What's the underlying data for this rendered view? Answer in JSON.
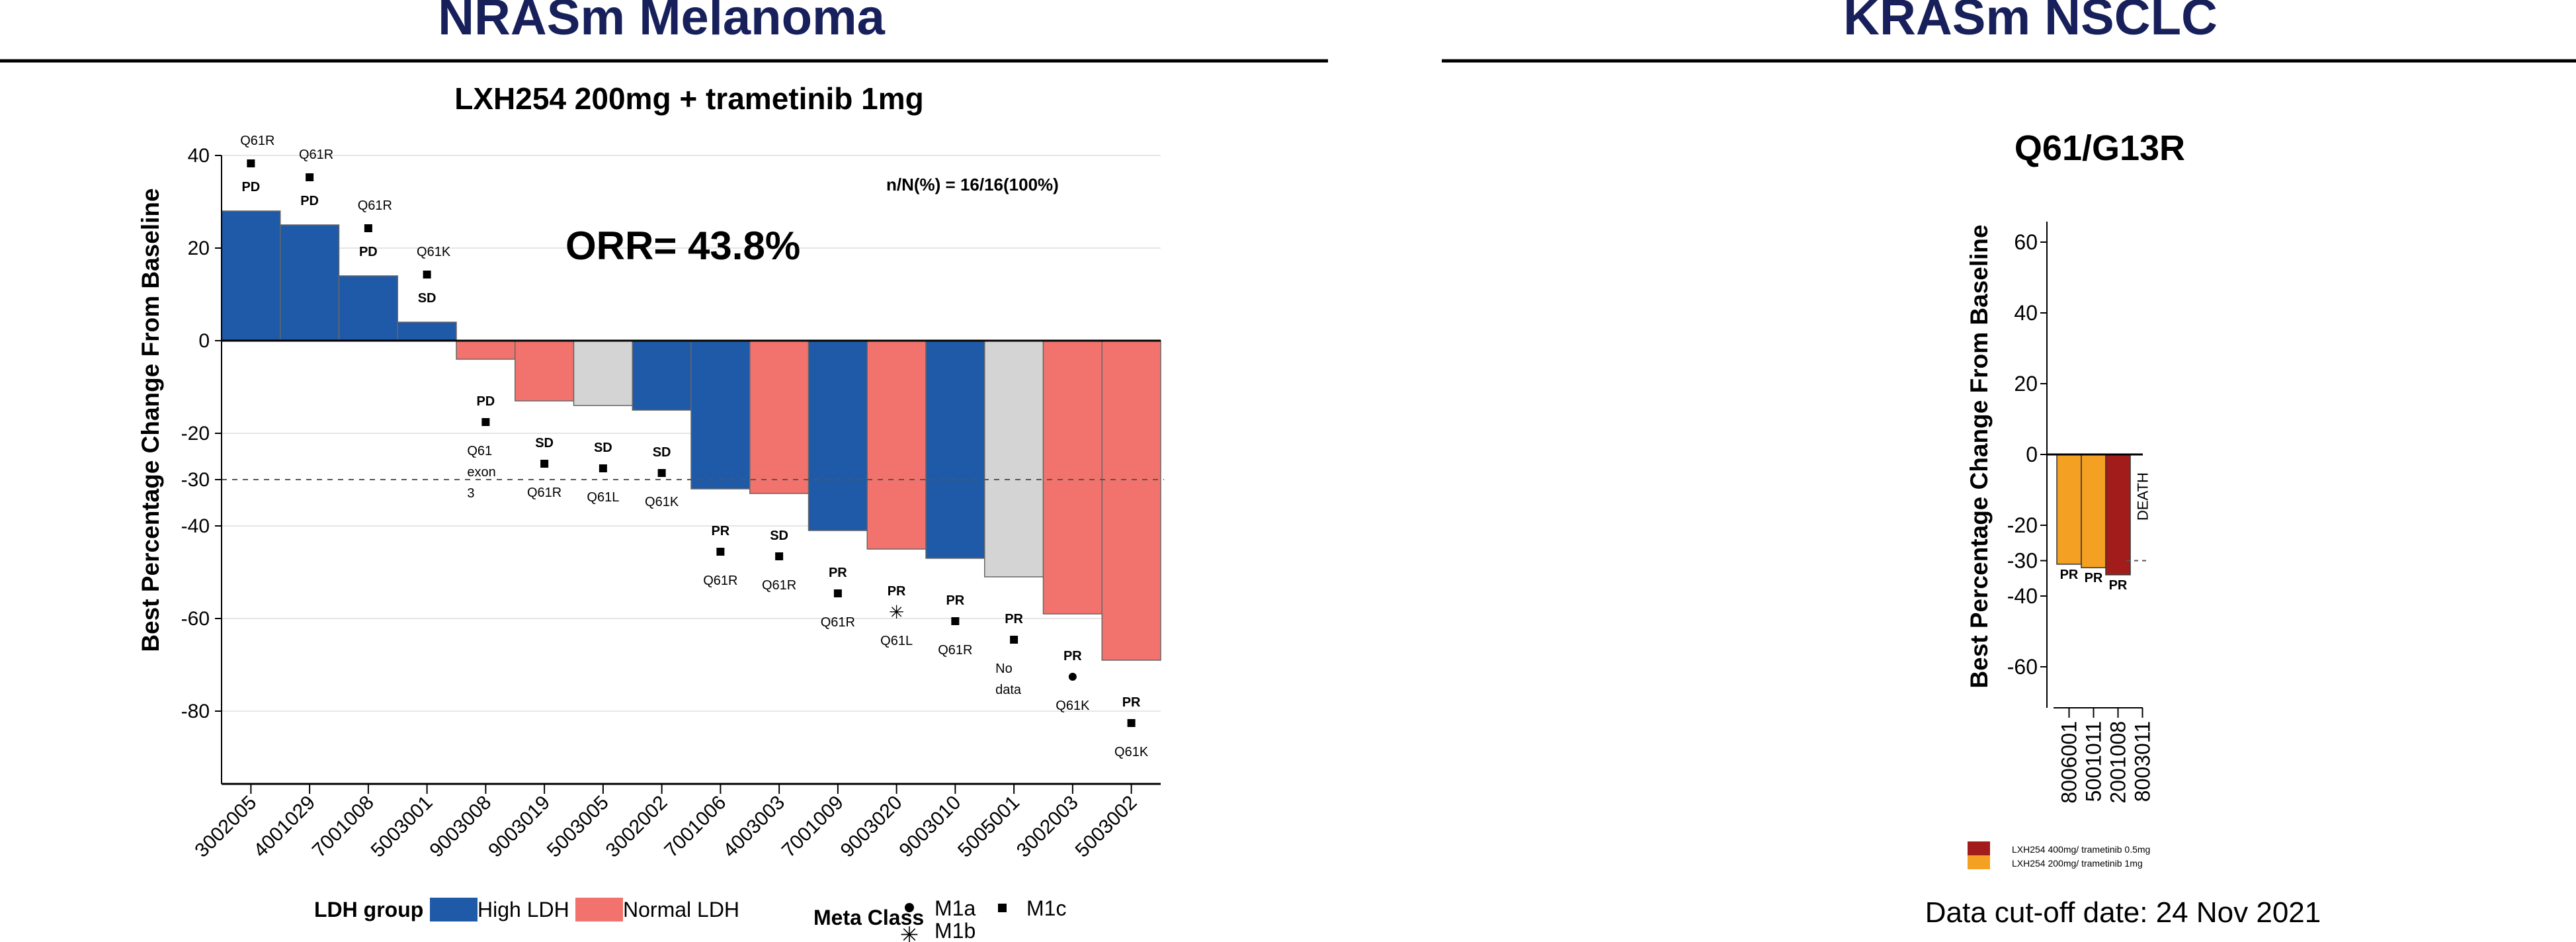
{
  "sections": {
    "left_title": "NRASm Melanoma",
    "right_title": "KRASm NSCLC"
  },
  "chart_data": [
    {
      "type": "bar",
      "title": "LXH254 200mg + trametinib 1mg",
      "ylabel": "Best Percentage Change From Baseline",
      "xlabel": "",
      "ylim": [
        -95,
        42
      ],
      "yticks": [
        40,
        20,
        0,
        -20,
        -30,
        -40,
        -60,
        -80
      ],
      "threshold": -30,
      "annotation_orr": "ORR= 43.8%",
      "annotation_n": "n/N(%) = 16/16(100%)",
      "categories": [
        "3002005",
        "4001029",
        "7001008",
        "5003001",
        "9003008",
        "9003019",
        "5003005",
        "3002002",
        "7001006",
        "4003003",
        "7001009",
        "9003020",
        "9003010",
        "5005001",
        "3002003",
        "5003002"
      ],
      "values": [
        28,
        25,
        14,
        4,
        -4,
        -13,
        -14,
        -15,
        -32,
        -33,
        -41,
        -45,
        -47,
        -51,
        -59,
        -69
      ],
      "ldh_group": [
        "High",
        "High",
        "High",
        "High",
        "Normal",
        "Normal",
        "Unknown",
        "High",
        "High",
        "Normal",
        "High",
        "Normal",
        "High",
        "Unknown",
        "Normal",
        "Normal"
      ],
      "responses": [
        "PD",
        "PD",
        "PD",
        "SD",
        "PD",
        "SD",
        "SD",
        "SD",
        "PR",
        "SD",
        "PR",
        "PR",
        "PR",
        "PR",
        "PR",
        "PR"
      ],
      "mutations": [
        [
          "Q61R"
        ],
        [
          "Q61R"
        ],
        [
          "Q61R"
        ],
        [
          "Q61K"
        ],
        [
          "Q61",
          "exon",
          "3"
        ],
        [
          "Q61R"
        ],
        [
          "Q61L"
        ],
        [
          "Q61K"
        ],
        [
          "Q61R"
        ],
        [
          "Q61R"
        ],
        [
          "Q61R"
        ],
        [
          "Q61L"
        ],
        [
          "Q61R"
        ],
        [
          "No",
          "data"
        ],
        [
          "Q61K"
        ],
        [
          "Q61K"
        ]
      ],
      "meta_class": [
        "M1c",
        "M1c",
        "M1c",
        "M1c",
        "M1c",
        "M1c",
        "M1c",
        "M1c",
        "M1c",
        "M1c",
        "M1c",
        "M1b",
        "M1c",
        "M1c",
        "M1a",
        "M1c"
      ],
      "colors": {
        "High": "#1f5aa8",
        "Normal": "#f2736d",
        "Unknown": "#d4d4d4"
      },
      "legend": {
        "ldh_title": "LDH group",
        "ldh_high": "High LDH",
        "ldh_normal": "Normal LDH",
        "meta_title": "Meta Class",
        "m1a": "M1a",
        "m1b": "M1b",
        "m1c": "M1c"
      }
    },
    {
      "type": "bar",
      "title": "Q61/G13R",
      "ylabel": "Best Percentage Change From Baseline",
      "xlabel": "",
      "ylim": [
        -72,
        68
      ],
      "yticks": [
        60,
        40,
        20,
        0,
        -20,
        -30,
        -40,
        -60
      ],
      "threshold": -30,
      "categories": [
        "8006001",
        "5001011",
        "2001008",
        "8003011"
      ],
      "values": [
        -31,
        -32,
        -34,
        0
      ],
      "labels": [
        "PR",
        "PR",
        "PR",
        "DEATH"
      ],
      "dose_group": [
        "200",
        "200",
        "400",
        ""
      ],
      "colors": {
        "400": "#a31c1c",
        "200": "#f4a022"
      },
      "legend": {
        "dose_400": "LXH254 400mg/ trametinib 0.5mg",
        "dose_200": "LXH254 200mg/ trametinib 1mg"
      }
    }
  ],
  "footer": {
    "cutoff": "Data cut-off date: 24 Nov 2021"
  }
}
